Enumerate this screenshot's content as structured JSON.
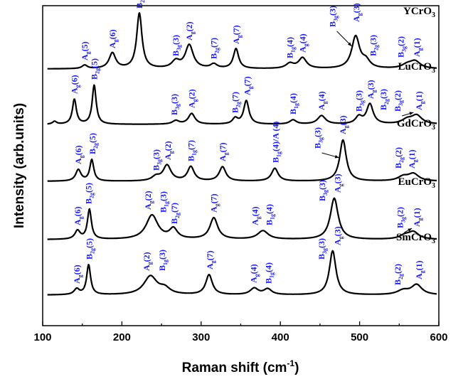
{
  "chart_data": {
    "type": "line",
    "xlabel": "Raman shift (cm",
    "xlabel_sup": "-1",
    "xlabel_tail": ")",
    "ylabel": "Intensity (arb.units)",
    "xlim": [
      100,
      600
    ],
    "x_ticks": [
      100,
      200,
      300,
      400,
      500,
      600
    ],
    "series": [
      {
        "name": "YCrO",
        "name_sub": "3",
        "baseline": 0.0,
        "peaks": [
          {
            "x": 153,
            "h": 0.05,
            "w": 4
          },
          {
            "x": 188,
            "h": 0.22,
            "w": 5
          },
          {
            "x": 222,
            "h": 0.78,
            "w": 4
          },
          {
            "x": 268,
            "h": 0.1,
            "w": 6
          },
          {
            "x": 285,
            "h": 0.33,
            "w": 6
          },
          {
            "x": 316,
            "h": 0.06,
            "w": 5
          },
          {
            "x": 344,
            "h": 0.28,
            "w": 4
          },
          {
            "x": 412,
            "h": 0.07,
            "w": 6
          },
          {
            "x": 428,
            "h": 0.15,
            "w": 6
          },
          {
            "x": 495,
            "h": 0.45,
            "w": 6
          },
          {
            "x": 508,
            "h": 0.1,
            "w": 6
          },
          {
            "x": 560,
            "h": 0.05,
            "w": 8
          },
          {
            "x": 570,
            "h": 0.1,
            "w": 8
          }
        ],
        "labels": [
          {
            "text": "A",
            "sub": "g",
            "mode": "(5)",
            "x": 153,
            "rise": 0.08
          },
          {
            "text": "A",
            "sub": "g",
            "mode": "(6)",
            "x": 188,
            "rise": 0.25
          },
          {
            "text": "B",
            "sub": "2g",
            "mode": "(5)",
            "x": 222,
            "rise": 0.81
          },
          {
            "text": "B",
            "sub": "3g",
            "mode": "(3)",
            "x": 268,
            "rise": 0.14
          },
          {
            "text": "A",
            "sub": "g",
            "mode": "(2)",
            "x": 285,
            "rise": 0.36
          },
          {
            "text": "B",
            "sub": "2g",
            "mode": "(7)",
            "x": 316,
            "rise": 0.1
          },
          {
            "text": "A",
            "sub": "g",
            "mode": "(7)",
            "x": 344,
            "rise": 0.31
          },
          {
            "text": "B",
            "sub": "1g",
            "mode": "(4)",
            "x": 412,
            "rise": 0.11
          },
          {
            "text": "A",
            "sub": "g",
            "mode": "(4)",
            "x": 428,
            "rise": 0.19
          },
          {
            "text": "B",
            "sub": "3g",
            "mode": "(3)",
            "x": 466,
            "rise": 0.55,
            "arrow_to": 490
          },
          {
            "text": "A",
            "sub": "g",
            "mode": "(3)",
            "x": 496,
            "rise": 0.62
          },
          {
            "text": "B",
            "sub": "2g",
            "mode": "(3)",
            "x": 517,
            "rise": 0.14
          },
          {
            "text": "B",
            "sub": "3g",
            "mode": "(2)",
            "x": 552,
            "rise": 0.12
          },
          {
            "text": "A",
            "sub": "g",
            "mode": "(1)",
            "x": 572,
            "rise": 0.13
          }
        ]
      },
      {
        "name": "LuCrO",
        "name_sub": "3",
        "baseline": 0.0,
        "peaks": [
          {
            "x": 115,
            "h": 0.04,
            "w": 3
          },
          {
            "x": 140,
            "h": 0.35,
            "w": 3
          },
          {
            "x": 165,
            "h": 0.55,
            "w": 3
          },
          {
            "x": 268,
            "h": 0.05,
            "w": 5
          },
          {
            "x": 288,
            "h": 0.15,
            "w": 5
          },
          {
            "x": 343,
            "h": 0.08,
            "w": 4
          },
          {
            "x": 357,
            "h": 0.33,
            "w": 4
          },
          {
            "x": 416,
            "h": 0.06,
            "w": 5
          },
          {
            "x": 452,
            "h": 0.12,
            "w": 6
          },
          {
            "x": 499,
            "h": 0.1,
            "w": 5
          },
          {
            "x": 513,
            "h": 0.28,
            "w": 5
          },
          {
            "x": 560,
            "h": 0.06,
            "w": 8
          },
          {
            "x": 572,
            "h": 0.12,
            "w": 8
          }
        ],
        "labels": [
          {
            "text": "A",
            "sub": "g",
            "mode": "(6)",
            "x": 140,
            "rise": 0.39
          },
          {
            "text": "B",
            "sub": "2g",
            "mode": "(5)",
            "x": 165,
            "rise": 0.59
          },
          {
            "text": "B",
            "sub": "3g",
            "mode": "(3)",
            "x": 266,
            "rise": 0.09
          },
          {
            "text": "A",
            "sub": "g",
            "mode": "(2)",
            "x": 288,
            "rise": 0.19
          },
          {
            "text": "B",
            "sub": "2g",
            "mode": "(7)",
            "x": 343,
            "rise": 0.12
          },
          {
            "text": "A",
            "sub": "g",
            "mode": "(7)",
            "x": 358,
            "rise": 0.37
          },
          {
            "text": "B",
            "sub": "1g",
            "mode": "(4)",
            "x": 416,
            "rise": 0.1
          },
          {
            "text": "A",
            "sub": "g",
            "mode": "(4)",
            "x": 452,
            "rise": 0.16
          },
          {
            "text": "B",
            "sub": "3g",
            "mode": "(3)",
            "x": 499,
            "rise": 0.14
          },
          {
            "text": "A",
            "sub": "g",
            "mode": "(3)",
            "x": 514,
            "rise": 0.32
          },
          {
            "text": "B",
            "sub": "2g",
            "mode": "(3)",
            "x": 530,
            "rise": 0.16
          },
          {
            "text": "B",
            "sub": "3g",
            "mode": "(2)",
            "x": 548,
            "rise": 0.14,
            "arrow_to": 568
          },
          {
            "text": "A",
            "sub": "g",
            "mode": "(1)",
            "x": 575,
            "rise": 0.16
          }
        ]
      },
      {
        "name": "GdCrO",
        "name_sub": "3",
        "baseline": 0.0,
        "peaks": [
          {
            "x": 145,
            "h": 0.16,
            "w": 4
          },
          {
            "x": 162,
            "h": 0.3,
            "w": 3
          },
          {
            "x": 243,
            "h": 0.06,
            "w": 6
          },
          {
            "x": 257,
            "h": 0.22,
            "w": 6
          },
          {
            "x": 287,
            "h": 0.2,
            "w": 5
          },
          {
            "x": 327,
            "h": 0.2,
            "w": 5
          },
          {
            "x": 393,
            "h": 0.18,
            "w": 5
          },
          {
            "x": 479,
            "h": 0.58,
            "w": 5
          },
          {
            "x": 555,
            "h": 0.06,
            "w": 8
          },
          {
            "x": 568,
            "h": 0.1,
            "w": 8
          }
        ],
        "labels": [
          {
            "text": "A",
            "sub": "g",
            "mode": "(6)",
            "x": 145,
            "rise": 0.2
          },
          {
            "text": "B",
            "sub": "2g",
            "mode": "(5)",
            "x": 163,
            "rise": 0.34
          },
          {
            "text": "B",
            "sub": "3g",
            "mode": "(3)",
            "x": 243,
            "rise": 0.11
          },
          {
            "text": "A",
            "sub": "g",
            "mode": "(2)",
            "x": 258,
            "rise": 0.26
          },
          {
            "text": "B",
            "sub": "1g",
            "mode": "(7)",
            "x": 287,
            "rise": 0.24
          },
          {
            "text": "A",
            "sub": "g",
            "mode": "(7)",
            "x": 327,
            "rise": 0.24
          },
          {
            "text": "B",
            "sub": "1g",
            "mode": "(4)/A (4)",
            "x": 394,
            "rise": 0.22
          },
          {
            "text": "B",
            "sub": "3g",
            "mode": "(3)",
            "x": 447,
            "rise": 0.42,
            "arrow_to": 474
          },
          {
            "text": "A",
            "sub": "g",
            "mode": "(3)",
            "x": 479,
            "rise": 0.62
          },
          {
            "text": "B",
            "sub": "2g",
            "mode": "(2)",
            "x": 549,
            "rise": 0.14
          },
          {
            "text": "A",
            "sub": "g",
            "mode": "(1)",
            "x": 566,
            "rise": 0.14
          }
        ]
      },
      {
        "name": "EuCrO",
        "name_sub": "3",
        "baseline": 0.0,
        "peaks": [
          {
            "x": 144,
            "h": 0.12,
            "w": 4
          },
          {
            "x": 159,
            "h": 0.42,
            "w": 3
          },
          {
            "x": 238,
            "h": 0.34,
            "w": 9
          },
          {
            "x": 265,
            "h": 0.14,
            "w": 6
          },
          {
            "x": 316,
            "h": 0.3,
            "w": 6
          },
          {
            "x": 378,
            "h": 0.12,
            "w": 8
          },
          {
            "x": 468,
            "h": 0.58,
            "w": 6
          },
          {
            "x": 557,
            "h": 0.05,
            "w": 8
          },
          {
            "x": 568,
            "h": 0.1,
            "w": 8
          }
        ],
        "labels": [
          {
            "text": "A",
            "sub": "g",
            "mode": "(6)",
            "x": 144,
            "rise": 0.16
          },
          {
            "text": "B",
            "sub": "2g",
            "mode": "(5)",
            "x": 158,
            "rise": 0.46
          },
          {
            "text": "A",
            "sub": "g",
            "mode": "(2)",
            "x": 233,
            "rise": 0.38
          },
          {
            "text": "B",
            "sub": "1g",
            "mode": "(3)",
            "x": 252,
            "rise": 0.34
          },
          {
            "text": "B",
            "sub": "2g",
            "mode": "(7)",
            "x": 266,
            "rise": 0.18
          },
          {
            "text": "A",
            "sub": "g",
            "mode": "(7)",
            "x": 316,
            "rise": 0.34
          },
          {
            "text": "A",
            "sub": "g",
            "mode": "(4)",
            "x": 368,
            "rise": 0.16
          },
          {
            "text": "B",
            "sub": "1g",
            "mode": "(4)",
            "x": 386,
            "rise": 0.16
          },
          {
            "text": "B",
            "sub": "3g",
            "mode": "(3)",
            "x": 453,
            "rise": 0.5
          },
          {
            "text": "A",
            "sub": "g",
            "mode": "(3)",
            "x": 472,
            "rise": 0.62
          },
          {
            "text": "B",
            "sub": "3g",
            "mode": "(2)",
            "x": 551,
            "rise": 0.12,
            "arrow_to": 566
          },
          {
            "text": "A",
            "sub": "g",
            "mode": "(1)",
            "x": 572,
            "rise": 0.14
          }
        ]
      },
      {
        "name": "SmCrO",
        "name_sub": "3",
        "baseline": 0.0,
        "peaks": [
          {
            "x": 143,
            "h": 0.08,
            "w": 4
          },
          {
            "x": 158,
            "h": 0.42,
            "w": 3
          },
          {
            "x": 236,
            "h": 0.26,
            "w": 10
          },
          {
            "x": 254,
            "h": 0.08,
            "w": 8
          },
          {
            "x": 310,
            "h": 0.28,
            "w": 5
          },
          {
            "x": 367,
            "h": 0.09,
            "w": 6
          },
          {
            "x": 384,
            "h": 0.08,
            "w": 6
          },
          {
            "x": 466,
            "h": 0.62,
            "w": 5
          },
          {
            "x": 555,
            "h": 0.06,
            "w": 9
          },
          {
            "x": 572,
            "h": 0.14,
            "w": 8
          }
        ],
        "labels": [
          {
            "text": "A",
            "sub": "g",
            "mode": "(6)",
            "x": 143,
            "rise": 0.12
          },
          {
            "text": "B",
            "sub": "2g",
            "mode": "(5)",
            "x": 159,
            "rise": 0.46
          },
          {
            "text": "A",
            "sub": "g",
            "mode": "(2)",
            "x": 231,
            "rise": 0.3
          },
          {
            "text": "B",
            "sub": "1g",
            "mode": "(3)",
            "x": 251,
            "rise": 0.3
          },
          {
            "text": "A",
            "sub": "g",
            "mode": "(7)",
            "x": 311,
            "rise": 0.32
          },
          {
            "text": "A",
            "sub": "g",
            "mode": "(4)",
            "x": 366,
            "rise": 0.13
          },
          {
            "text": "B",
            "sub": "1g",
            "mode": "(4)",
            "x": 385,
            "rise": 0.12
          },
          {
            "text": "B",
            "sub": "3g",
            "mode": "(3)",
            "x": 452,
            "rise": 0.46
          },
          {
            "text": "A",
            "sub": "g",
            "mode": "(3)",
            "x": 472,
            "rise": 0.66
          },
          {
            "text": "B",
            "sub": "2g",
            "mode": "(2)",
            "x": 548,
            "rise": 0.1
          },
          {
            "text": "A",
            "sub": "g",
            "mode": "(1)",
            "x": 575,
            "rise": 0.18
          }
        ]
      }
    ]
  }
}
